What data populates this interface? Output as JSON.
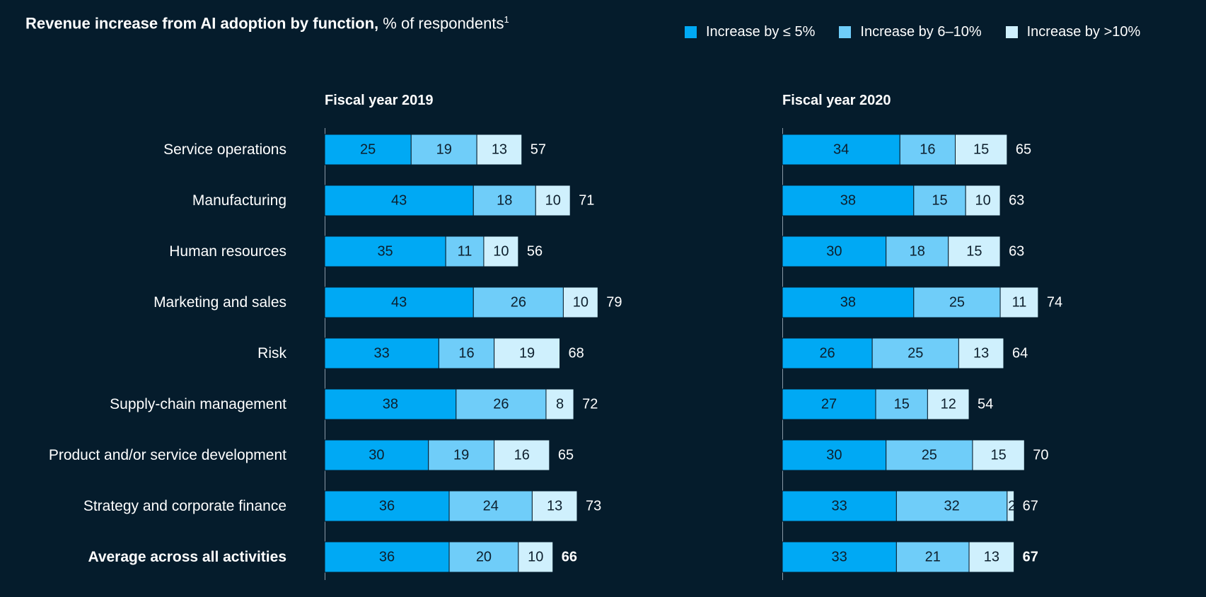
{
  "title": {
    "bold": "Revenue increase from AI adoption by function,",
    "normal": "% of respondents",
    "footnote": "1"
  },
  "legend": {
    "items": [
      {
        "label": "Increase by ≤ 5%",
        "color": "#00a9f4"
      },
      {
        "label": "Increase by 6–10%",
        "color": "#6fcdf9"
      },
      {
        "label": "Increase by >10%",
        "color": "#cff0fd"
      }
    ]
  },
  "chart_data": {
    "type": "bar",
    "orientation": "horizontal",
    "stacked": true,
    "title": "Revenue increase from AI adoption by function, % of respondents",
    "categories": [
      "Service operations",
      "Manufacturing",
      "Human resources",
      "Marketing and sales",
      "Risk",
      "Supply-chain management",
      "Product and/or service development",
      "Strategy and corporate finance",
      "Average across all activities"
    ],
    "panels": [
      {
        "title": "Fiscal year 2019",
        "series": [
          {
            "name": "Increase by ≤ 5%",
            "values": [
              25,
              43,
              35,
              43,
              33,
              38,
              30,
              36,
              36
            ]
          },
          {
            "name": "Increase by 6–10%",
            "values": [
              19,
              18,
              11,
              26,
              16,
              26,
              19,
              24,
              20
            ]
          },
          {
            "name": "Increase by >10%",
            "values": [
              13,
              10,
              10,
              10,
              19,
              8,
              16,
              13,
              10
            ]
          }
        ],
        "totals": [
          57,
          71,
          56,
          79,
          68,
          72,
          65,
          73,
          66
        ]
      },
      {
        "title": "Fiscal year 2020",
        "series": [
          {
            "name": "Increase by ≤ 5%",
            "values": [
              34,
              38,
              30,
              38,
              26,
              27,
              30,
              33,
              33
            ]
          },
          {
            "name": "Increase by 6–10%",
            "values": [
              16,
              15,
              18,
              25,
              25,
              15,
              25,
              32,
              21
            ]
          },
          {
            "name": "Increase by >10%",
            "values": [
              15,
              10,
              15,
              11,
              13,
              12,
              15,
              2,
              13
            ]
          }
        ],
        "totals": [
          65,
          63,
          63,
          74,
          64,
          54,
          70,
          67,
          67
        ]
      }
    ],
    "xlim": [
      0,
      100
    ]
  }
}
